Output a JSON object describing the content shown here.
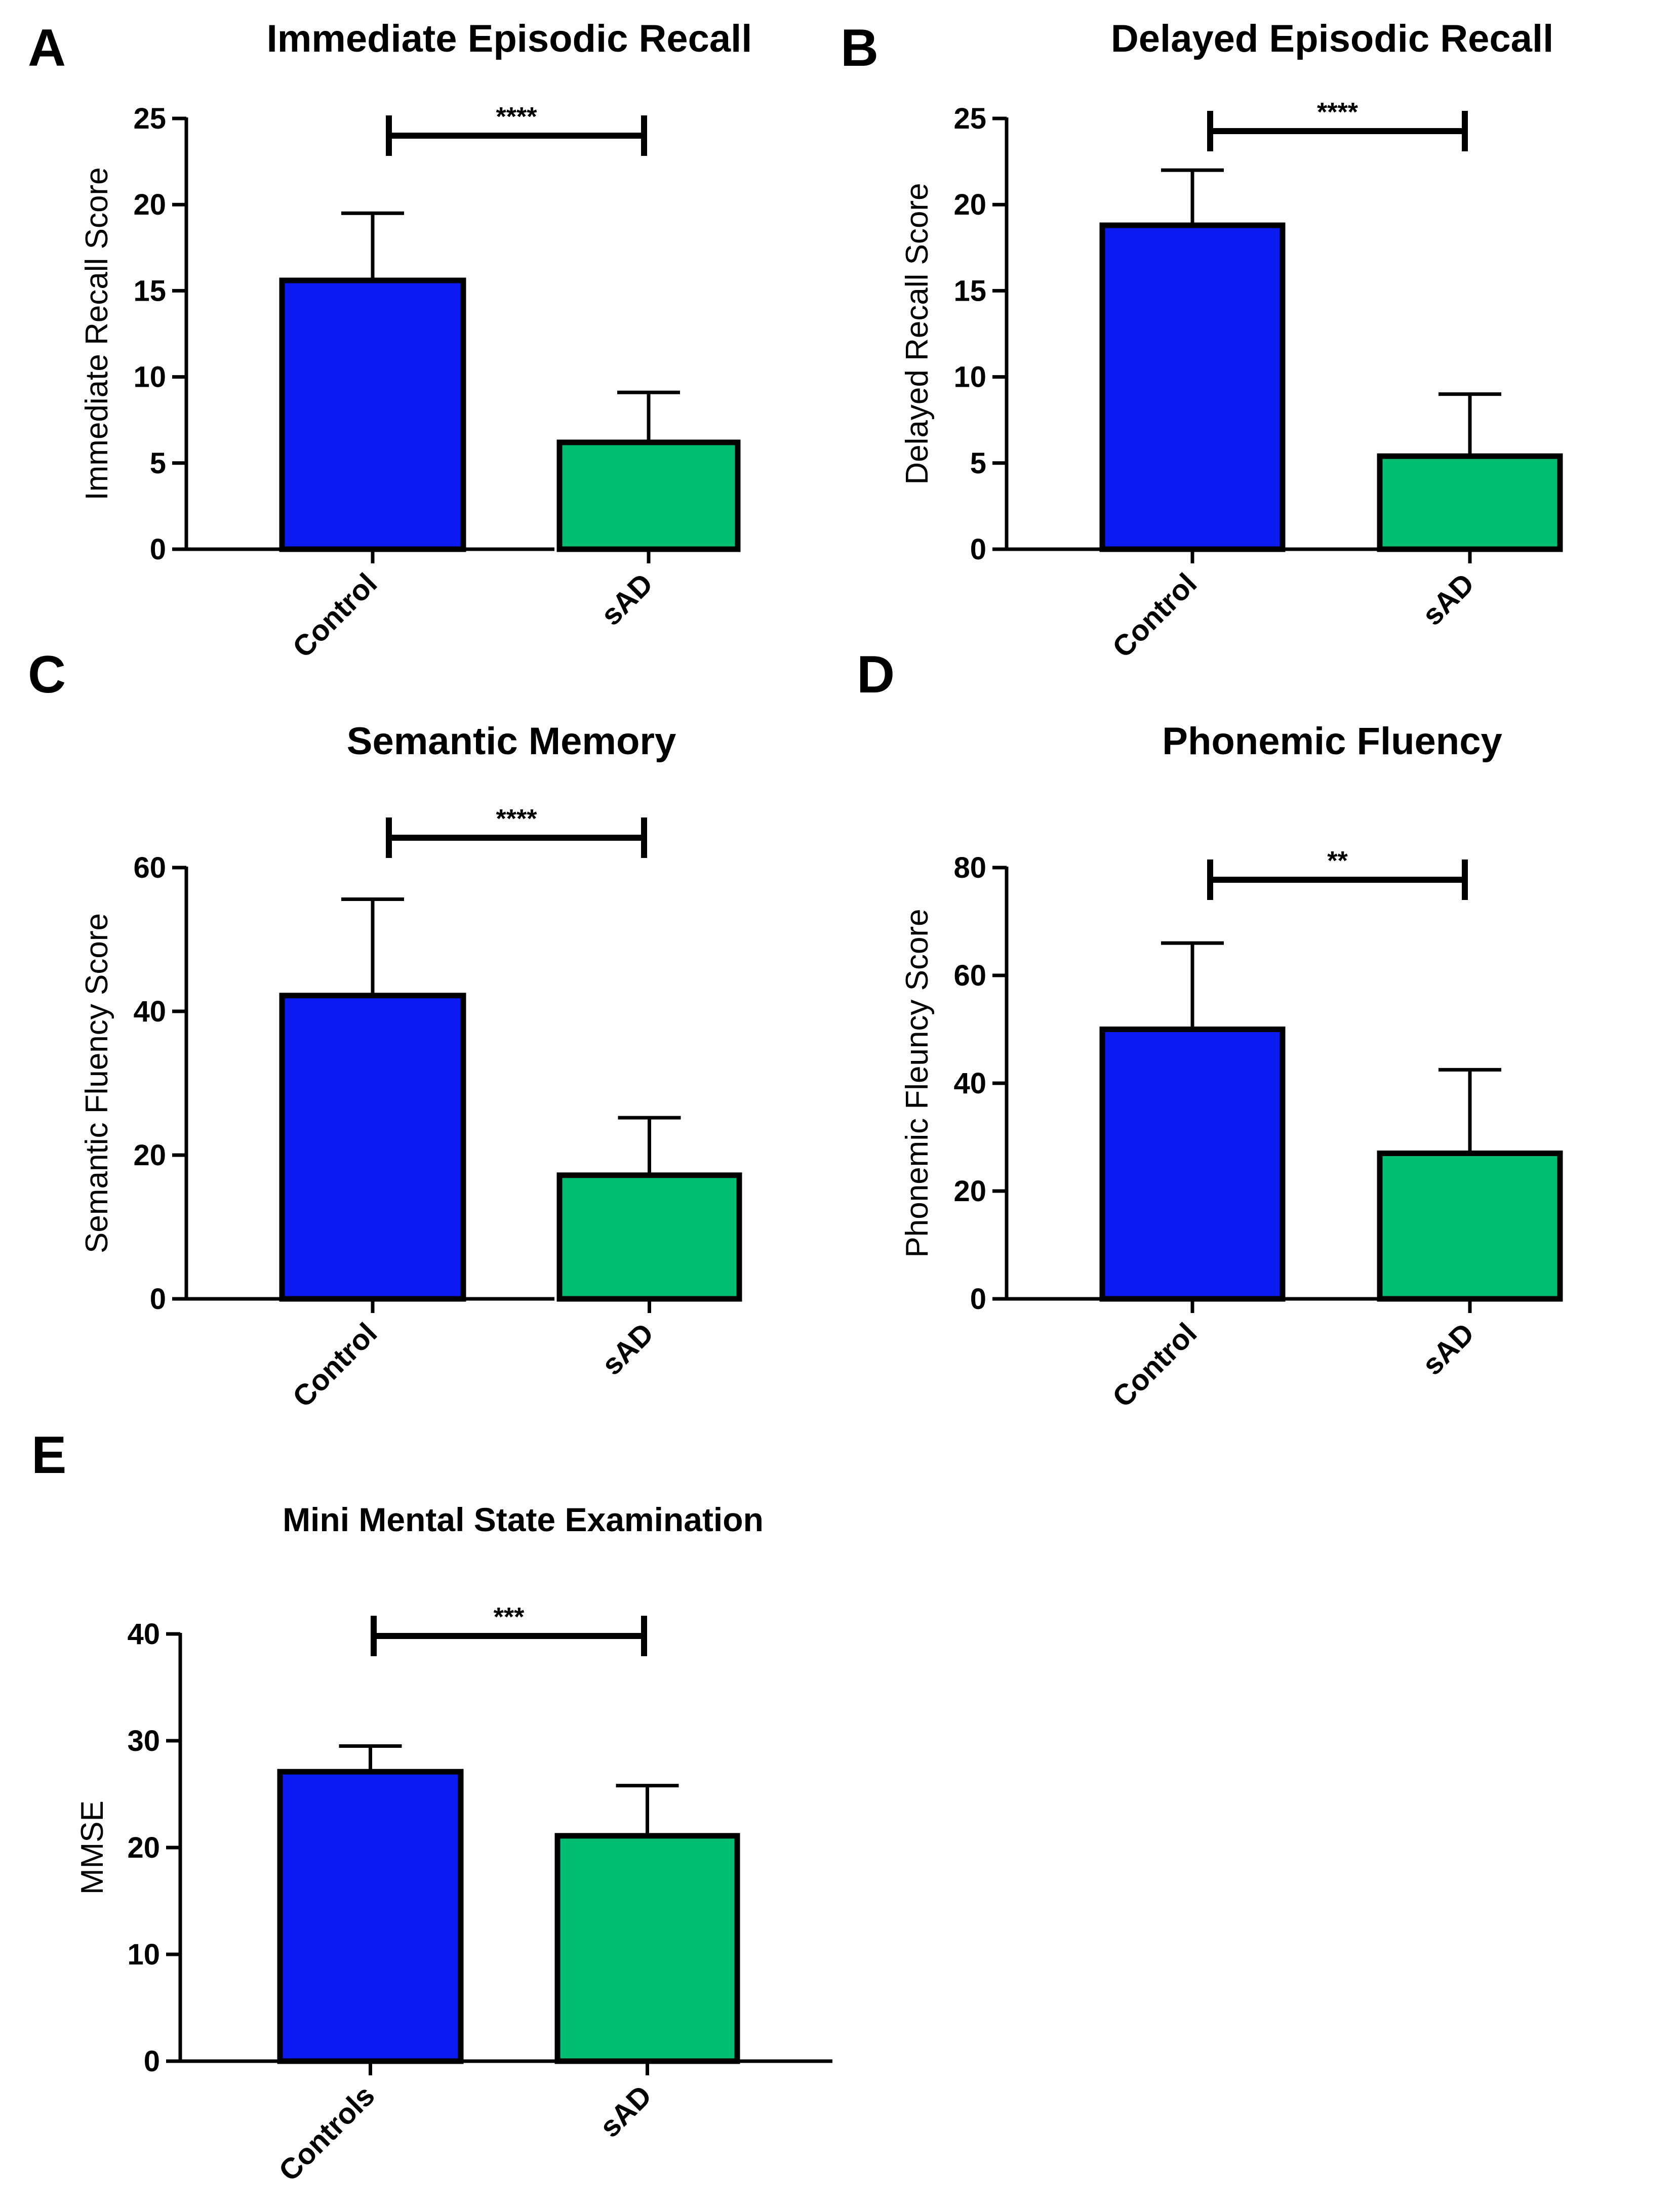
{
  "colors": {
    "control": "#0a1cf2",
    "sad": "#00bf72",
    "ink": "#000000"
  },
  "chart_data": [
    {
      "panel": "A",
      "type": "bar",
      "title": "Immediate Episodic Recall",
      "xlabel": "",
      "ylabel": "Immediate Recall Score",
      "ylim": [
        0,
        25
      ],
      "yticks": [
        0,
        5,
        10,
        15,
        20,
        25
      ],
      "categories": [
        "Control",
        "sAD"
      ],
      "values": [
        15.6,
        6.2
      ],
      "errors": [
        3.9,
        2.9
      ],
      "significance": "****",
      "grid": false
    },
    {
      "panel": "B",
      "type": "bar",
      "title": "Delayed Episodic Recall",
      "xlabel": "",
      "ylabel": "Delayed Recall Score",
      "ylim": [
        0,
        25
      ],
      "yticks": [
        0,
        5,
        10,
        15,
        20,
        25
      ],
      "categories": [
        "Control",
        "sAD"
      ],
      "values": [
        18.8,
        5.4
      ],
      "errors": [
        3.2,
        3.6
      ],
      "significance": "****",
      "grid": false
    },
    {
      "panel": "C",
      "type": "bar",
      "title": "Semantic Memory",
      "xlabel": "",
      "ylabel": "Semantic Fluency Score",
      "ylim": [
        0,
        60
      ],
      "yticks": [
        0,
        20,
        40,
        60
      ],
      "categories": [
        "Control",
        "sAD"
      ],
      "values": [
        42.2,
        17.2
      ],
      "errors": [
        13.4,
        8.0
      ],
      "significance": "****",
      "grid": false
    },
    {
      "panel": "D",
      "type": "bar",
      "title": "Phonemic Fluency",
      "xlabel": "",
      "ylabel": "Phonemic Fleuncy Score",
      "ylim": [
        0,
        80
      ],
      "yticks": [
        0,
        20,
        40,
        60,
        80
      ],
      "categories": [
        "Control",
        "sAD"
      ],
      "values": [
        50.0,
        27.0
      ],
      "errors": [
        16.0,
        15.5
      ],
      "significance": "**",
      "grid": false
    },
    {
      "panel": "E",
      "type": "bar",
      "title": "Mini Mental State Examination",
      "xlabel": "",
      "ylabel": "MMSE",
      "ylim": [
        0,
        40
      ],
      "yticks": [
        0,
        10,
        20,
        30,
        40
      ],
      "categories": [
        "Controls",
        "sAD"
      ],
      "values": [
        27.1,
        21.1
      ],
      "errors": [
        2.4,
        4.7
      ],
      "significance": "***",
      "grid": false
    }
  ]
}
